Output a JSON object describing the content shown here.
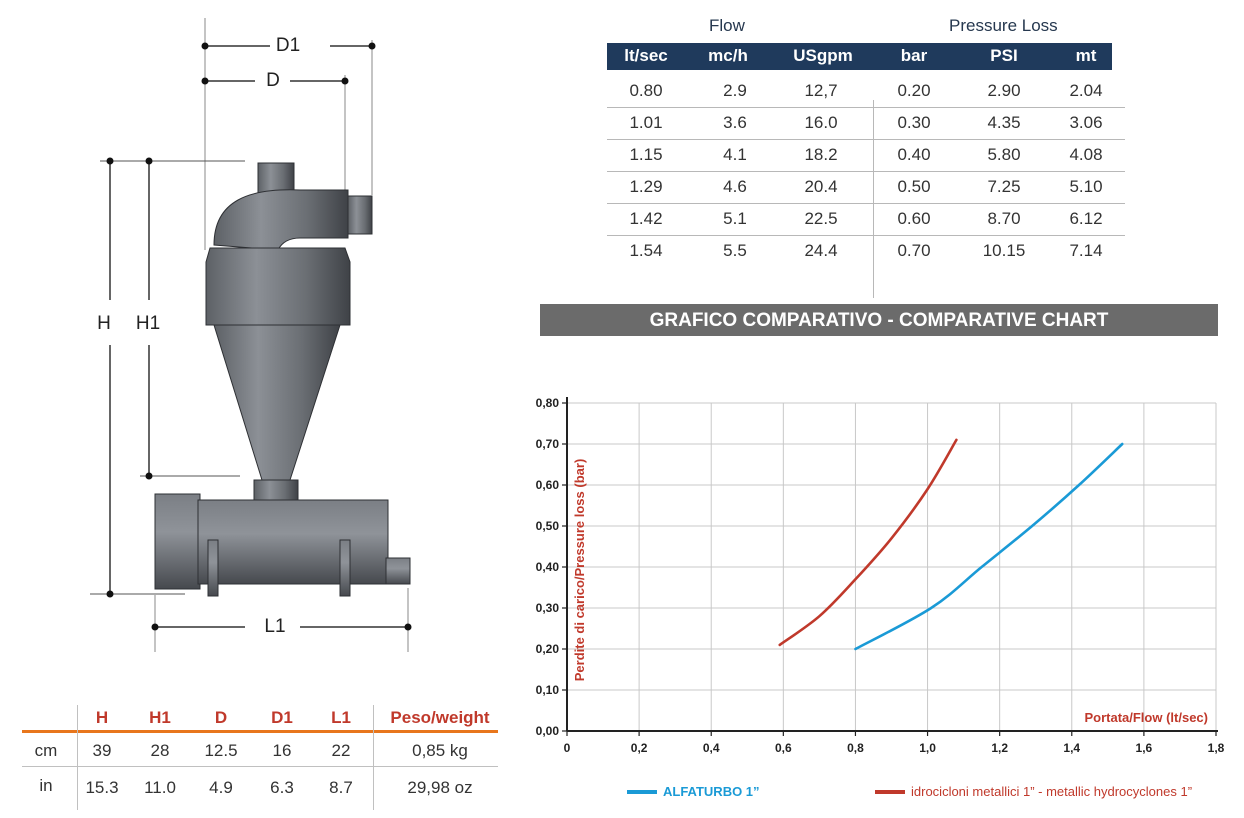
{
  "flow_table": {
    "group_flow": "Flow",
    "group_pressure": "Pressure Loss",
    "headers": [
      "lt/sec",
      "mc/h",
      "USgpm",
      "bar",
      "PSI",
      "mt"
    ],
    "rows": [
      [
        "0.80",
        "2.9",
        "12,7",
        "0.20",
        "2.90",
        "2.04"
      ],
      [
        "1.01",
        "3.6",
        "16.0",
        "0.30",
        "4.35",
        "3.06"
      ],
      [
        "1.15",
        "4.1",
        "18.2",
        "0.40",
        "5.80",
        "4.08"
      ],
      [
        "1.29",
        "4.6",
        "20.4",
        "0.50",
        "7.25",
        "5.10"
      ],
      [
        "1.42",
        "5.1",
        "22.5",
        "0.60",
        "8.70",
        "6.12"
      ],
      [
        "1.54",
        "5.5",
        "24.4",
        "0.70",
        "10.15",
        "7.14"
      ]
    ]
  },
  "banner": "GRAFICO COMPARATIVO - COMPARATIVE CHART",
  "dimensions_table": {
    "headers": [
      "H",
      "H1",
      "D",
      "D1",
      "L1",
      "Peso/weight"
    ],
    "rows": [
      {
        "unit": "cm",
        "values": [
          "39",
          "28",
          "12.5",
          "16",
          "22",
          "0,85 kg"
        ]
      },
      {
        "unit": "in",
        "values": [
          "15.3",
          "11.0",
          "4.9",
          "6.3",
          "8.7",
          "29,98 oz"
        ]
      }
    ],
    "header_color": "#c0392b",
    "rule_color": "#e8761c"
  },
  "drawing_labels": {
    "d1": "D1",
    "d": "D",
    "h": "H",
    "h1": "H1",
    "l1": "L1"
  },
  "chart_data": {
    "type": "line",
    "title": "",
    "xlabel": "Portata/Flow (lt/sec)",
    "ylabel": "Perdite di carico/Pressure loss (bar)",
    "xlim": [
      0,
      1.8
    ],
    "ylim": [
      0,
      0.8
    ],
    "x_ticks": [
      "0",
      "0,2",
      "0,4",
      "0,6",
      "0,8",
      "1,0",
      "1,2",
      "1,4",
      "1,6",
      "1,8"
    ],
    "y_ticks": [
      "0,00",
      "0,10",
      "0,20",
      "0,30",
      "0,40",
      "0,50",
      "0,60",
      "0,70",
      "0,80"
    ],
    "grid": true,
    "legend_position": "bottom",
    "series": [
      {
        "name": "ALFATURBO 1”",
        "color": "#1a9ad6",
        "x": [
          0.8,
          1.01,
          1.15,
          1.29,
          1.42,
          1.54
        ],
        "y": [
          0.2,
          0.3,
          0.4,
          0.5,
          0.6,
          0.7
        ]
      },
      {
        "name": "idrocicloni metallici 1” - metallic hydrocyclones 1”",
        "color": "#c0392b",
        "x": [
          0.59,
          0.7,
          0.8,
          0.9,
          1.0,
          1.08
        ],
        "y": [
          0.21,
          0.28,
          0.37,
          0.47,
          0.59,
          0.71
        ]
      }
    ]
  }
}
